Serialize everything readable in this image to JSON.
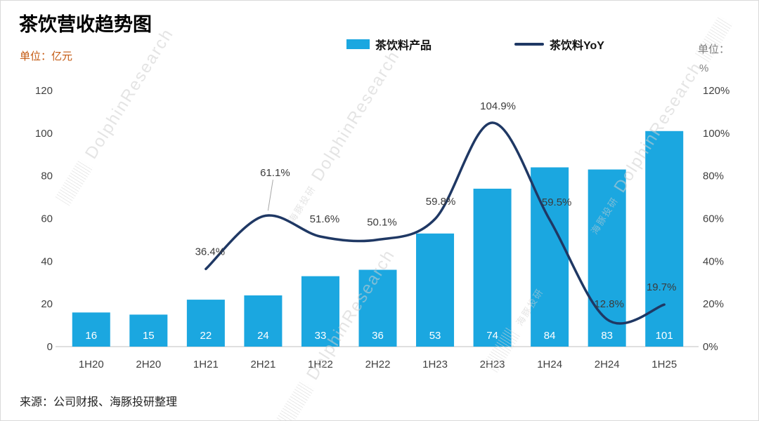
{
  "title": "茶饮营收趋势图",
  "units": {
    "left": "单位：亿元",
    "right_prefix": "单位：",
    "right_symbol": "%"
  },
  "source": "来源：公司财报、海豚投研整理",
  "watermark": {
    "big": "DolphinResearch",
    "small": "海豚投研"
  },
  "colors": {
    "bar": "#1ba7e0",
    "line": "#1f3864",
    "axis_line": "#bfbfbf",
    "left_unit": "#c45911",
    "right_unit": "#7f7f7f",
    "axis_text": "#404040",
    "bar_label": "#ffffff"
  },
  "chart_data": {
    "type": "bar+line",
    "title": "茶饮营收趋势图",
    "categories": [
      "1H20",
      "2H20",
      "1H21",
      "2H21",
      "1H22",
      "2H22",
      "1H23",
      "2H23",
      "1H24",
      "2H24",
      "1H25"
    ],
    "series": [
      {
        "name": "茶饮料产品",
        "type": "bar",
        "axis": "left",
        "unit": "亿元",
        "values": [
          16,
          15,
          22,
          24,
          33,
          36,
          53,
          74,
          84,
          83,
          101
        ]
      },
      {
        "name": "茶饮料YoY",
        "type": "line",
        "axis": "right",
        "unit": "%",
        "values": [
          null,
          null,
          36.4,
          61.1,
          51.6,
          50.1,
          59.8,
          104.9,
          59.5,
          12.8,
          19.7
        ]
      }
    ],
    "left_axis": {
      "min": 0,
      "max": 120,
      "step": 20,
      "unit": "亿元"
    },
    "right_axis": {
      "min": 0,
      "max": 120,
      "step": 20,
      "unit": "%"
    },
    "legend_position": "top",
    "grid": false
  }
}
